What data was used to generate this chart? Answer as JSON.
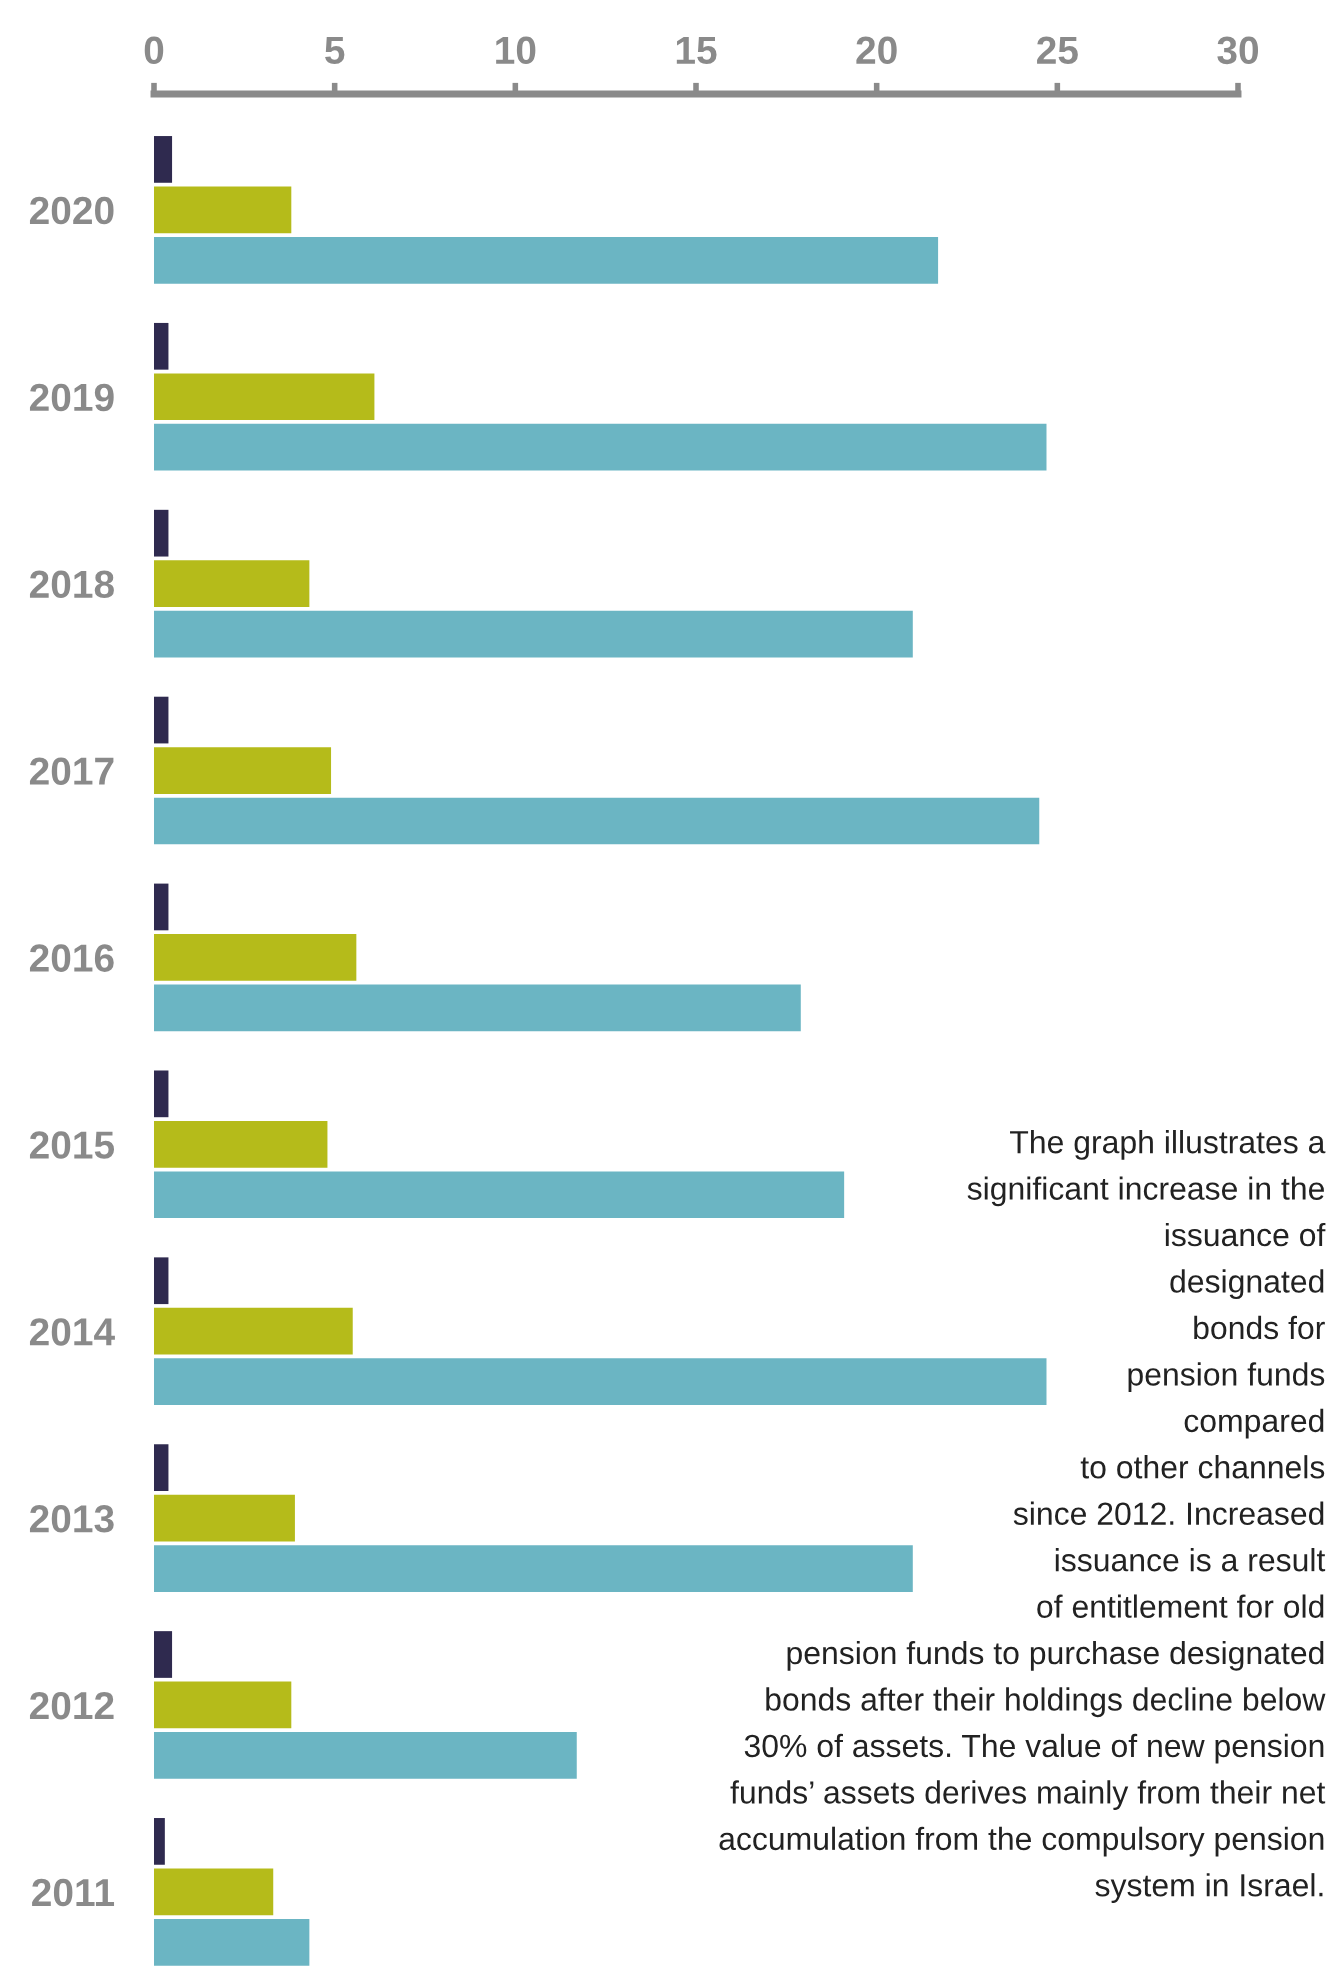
{
  "chart_data": {
    "type": "bar",
    "orientation": "horizontal",
    "categories": [
      "2020",
      "2019",
      "2018",
      "2017",
      "2016",
      "2015",
      "2014",
      "2013",
      "2012",
      "2011"
    ],
    "series": [
      {
        "color": "#2f2a4f",
        "values": [
          0.5,
          0.4,
          0.4,
          0.4,
          0.4,
          0.4,
          0.4,
          0.4,
          0.5,
          0.3
        ]
      },
      {
        "color": "#b5bb1a",
        "values": [
          3.8,
          6.1,
          4.3,
          4.9,
          5.6,
          4.8,
          5.5,
          3.9,
          3.8,
          3.3
        ]
      },
      {
        "color": "#6bb5c3",
        "values": [
          21.7,
          24.7,
          21.0,
          24.5,
          17.9,
          19.1,
          24.7,
          21.0,
          11.7,
          4.3
        ]
      }
    ],
    "xlim": [
      0,
      30
    ],
    "xticks": [
      0,
      5,
      10,
      15,
      20,
      25,
      30
    ],
    "grid": false,
    "legend": false,
    "annotations": [
      "The graph illustrates a\nsignificant increase in the\nissuance of\ndesignated\nbonds for\npension funds\ncompared\nto other channels\nsince 2012. Increased\nissuance is a result\nof entitlement for old\npension funds to purchase designated\nbonds after their holdings decline below\n30% of assets. The value of new pension\nfunds’ assets derives mainly from their net\naccumulation from the compulsory pension\nsystem in Israel."
    ]
  }
}
